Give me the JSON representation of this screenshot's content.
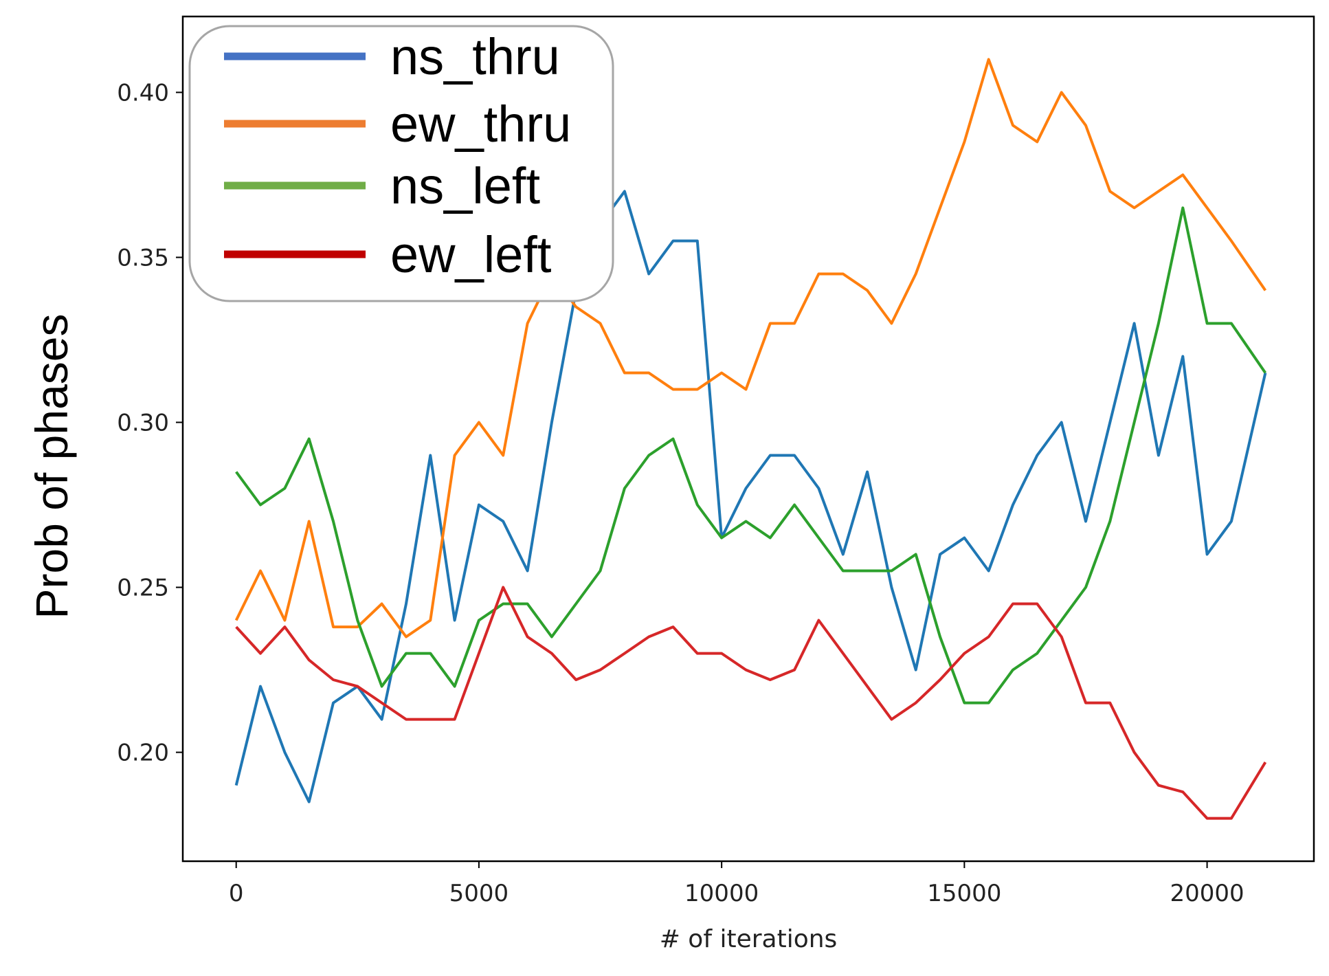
{
  "chart_data": {
    "type": "line",
    "xlabel": "# of iterations",
    "ylabel": "Prob of phases",
    "xlim": [
      -1100,
      22200
    ],
    "ylim": [
      0.167,
      0.423
    ],
    "xticks": [
      0,
      5000,
      10000,
      15000,
      20000
    ],
    "xtick_labels": [
      "0",
      "5000",
      "10000",
      "15000",
      "20000"
    ],
    "yticks": [
      0.2,
      0.25,
      0.3,
      0.35,
      0.4
    ],
    "ytick_labels": [
      "0.20",
      "0.25",
      "0.30",
      "0.35",
      "0.40"
    ],
    "grid": false,
    "legend_position": "top-left",
    "x": [
      0,
      500,
      1000,
      1500,
      2000,
      2500,
      3000,
      3500,
      4000,
      4500,
      5000,
      5500,
      6000,
      6500,
      7000,
      7500,
      8000,
      8500,
      9000,
      9500,
      10000,
      10500,
      11000,
      11500,
      12000,
      12500,
      13000,
      13500,
      14000,
      14500,
      15000,
      15500,
      16000,
      16500,
      17000,
      17500,
      18000,
      18500,
      19000,
      19500,
      20000,
      20500,
      21200
    ],
    "series": [
      {
        "name": "ns_thru",
        "color": "#1f77b4",
        "legend_color": "#4472c4",
        "values": [
          0.19,
          0.22,
          0.2,
          0.185,
          0.215,
          0.22,
          0.21,
          0.245,
          0.29,
          0.24,
          0.275,
          0.27,
          0.255,
          0.3,
          0.34,
          0.36,
          0.37,
          0.345,
          0.355,
          0.355,
          0.265,
          0.28,
          0.29,
          0.29,
          0.28,
          0.26,
          0.285,
          0.25,
          0.225,
          0.26,
          0.265,
          0.255,
          0.275,
          0.29,
          0.3,
          0.27,
          0.3,
          0.33,
          0.29,
          0.32,
          0.26,
          0.27,
          0.315
        ]
      },
      {
        "name": "ew_thru",
        "color": "#ff7f0e",
        "legend_color": "#ed7d31",
        "values": [
          0.24,
          0.255,
          0.24,
          0.27,
          0.238,
          0.238,
          0.245,
          0.235,
          0.24,
          0.29,
          0.3,
          0.29,
          0.33,
          0.345,
          0.335,
          0.33,
          0.315,
          0.315,
          0.31,
          0.31,
          0.315,
          0.31,
          0.33,
          0.33,
          0.345,
          0.345,
          0.34,
          0.33,
          0.345,
          0.365,
          0.385,
          0.41,
          0.39,
          0.385,
          0.4,
          0.39,
          0.37,
          0.365,
          0.37,
          0.375,
          0.365,
          0.355,
          0.34
        ]
      },
      {
        "name": "ns_left",
        "color": "#2ca02c",
        "legend_color": "#70ad47",
        "values": [
          0.285,
          0.275,
          0.28,
          0.295,
          0.27,
          0.24,
          0.22,
          0.23,
          0.23,
          0.22,
          0.24,
          0.245,
          0.245,
          0.235,
          0.245,
          0.255,
          0.28,
          0.29,
          0.295,
          0.275,
          0.265,
          0.27,
          0.265,
          0.275,
          0.265,
          0.255,
          0.255,
          0.255,
          0.26,
          0.235,
          0.215,
          0.215,
          0.225,
          0.23,
          0.24,
          0.25,
          0.27,
          0.3,
          0.33,
          0.365,
          0.33,
          0.33,
          0.315
        ]
      },
      {
        "name": "ew_left",
        "color": "#d62728",
        "legend_color": "#c00000",
        "values": [
          0.238,
          0.23,
          0.238,
          0.228,
          0.222,
          0.22,
          0.215,
          0.21,
          0.21,
          0.21,
          0.23,
          0.25,
          0.235,
          0.23,
          0.222,
          0.225,
          0.23,
          0.235,
          0.238,
          0.23,
          0.23,
          0.225,
          0.222,
          0.225,
          0.24,
          0.23,
          0.22,
          0.21,
          0.215,
          0.222,
          0.23,
          0.235,
          0.245,
          0.245,
          0.235,
          0.215,
          0.215,
          0.2,
          0.19,
          0.188,
          0.18,
          0.18,
          0.197
        ]
      }
    ]
  }
}
